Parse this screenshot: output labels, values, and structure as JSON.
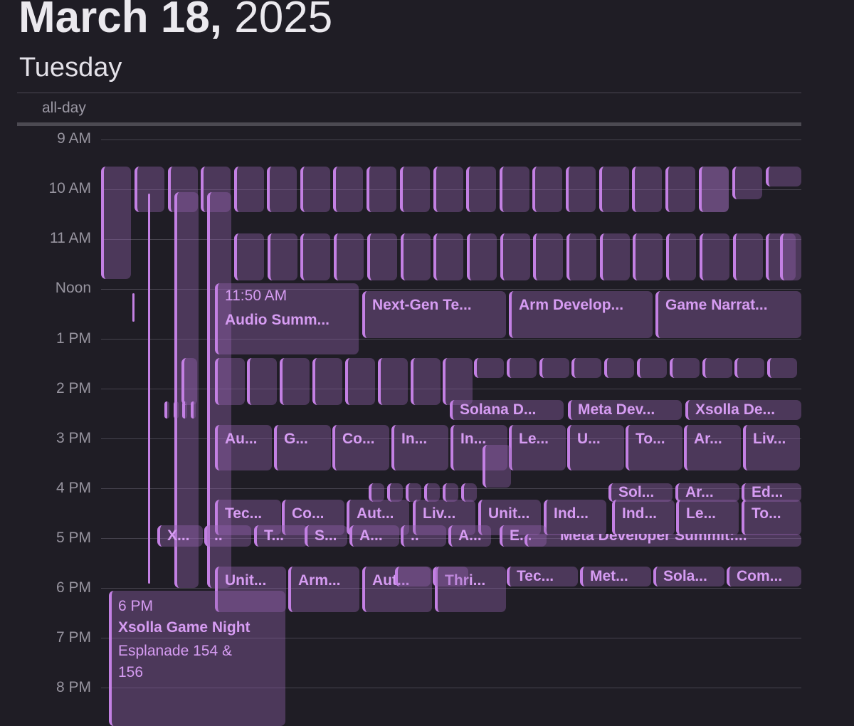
{
  "header": {
    "date_bold": "March 18,",
    "year": "2025",
    "weekday": "Tuesday"
  },
  "allday_label": "all-day",
  "hours": [
    "9 AM",
    "10 AM",
    "11 AM",
    "Noon",
    "1 PM",
    "2 PM",
    "3 PM",
    "4 PM",
    "5 PM",
    "6 PM",
    "7 PM",
    "8 PM"
  ],
  "events": {
    "audio_summit": {
      "time": "11:50 AM",
      "title": "Audio Summ..."
    },
    "next_gen": {
      "title": "Next-Gen Te..."
    },
    "arm_dev": {
      "title": "Arm Develop..."
    },
    "game_narrat": {
      "title": "Game Narrat..."
    },
    "row_230": [
      "Solana D...",
      "Meta Dev...",
      "Xsolla De..."
    ],
    "row_3pm": [
      "Au...",
      "G...",
      "Co...",
      "In...",
      "In...",
      "Le...",
      "U...",
      "To...",
      "Ar...",
      "Liv..."
    ],
    "row_4pm": [
      "Sol...",
      "Ar...",
      "Ed..."
    ],
    "row_430": [
      "Tec...",
      "Co...",
      "Aut...",
      "Liv...",
      "Unit...",
      "Ind...",
      "Ind...",
      "Le...",
      "To..."
    ],
    "row_5pm": [
      "X...",
      "..",
      "T...",
      "S...",
      "A...",
      "..",
      "A...",
      "E..."
    ],
    "meta_summit": "Meta Developer Summit:...",
    "row_6pm": [
      "Unit...",
      "Arm...",
      "Aut...",
      "Thri...",
      "Tec...",
      "Met...",
      "Sola...",
      "Com..."
    ],
    "xsolla_night": {
      "time": "6 PM",
      "title": "Xsolla Game Night",
      "location": "Esplanade 154 & 156"
    }
  }
}
